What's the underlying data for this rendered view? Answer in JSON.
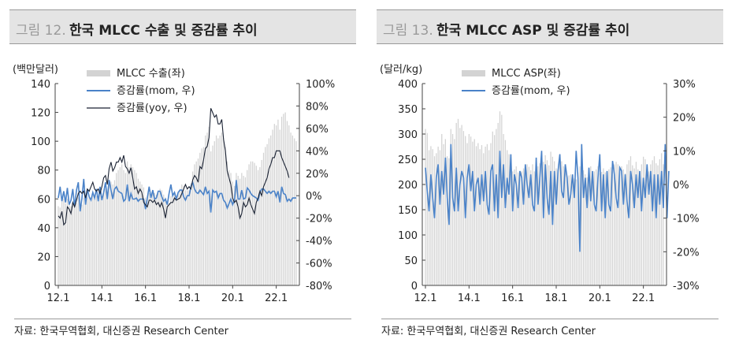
{
  "panels": {
    "left": {
      "title_num": "그림 12.",
      "title_text": "한국 MLCC 수출 및 증감률 추이",
      "source": "자료: 한국무역협회, 대신증권 Research Center"
    },
    "right": {
      "title_num": "그림 13.",
      "title_text": "한국 MLCC ASP 및 증감률 추이",
      "source": "자료: 한국무역협회, 대신증권 Research Center"
    }
  },
  "chart_data": [
    {
      "type": "bar",
      "title": "한국 MLCC 수출 및 증감률 추이",
      "ylabel": "(백만달러)",
      "ylim": [
        0,
        140
      ],
      "y_ticks": [
        "0",
        "20",
        "40",
        "60",
        "80",
        "100",
        "120",
        "140"
      ],
      "y2lim": [
        -80,
        100
      ],
      "y2_ticks": [
        "-80%",
        "-60%",
        "-40%",
        "-20%",
        "0%",
        "20%",
        "40%",
        "60%",
        "80%",
        "100%"
      ],
      "x_ticks": [
        "12.1",
        "14.1",
        "16.1",
        "18.1",
        "20.1",
        "22.1"
      ],
      "grid": false,
      "legend_position": "top-center",
      "colors": {
        "bar": "#d3d3d3",
        "mom": "#4a82c8",
        "yoy": "#1a2233"
      },
      "series": [
        {
          "name": "MLCC 수출(좌)",
          "axis": "left",
          "kind": "bar",
          "values": [
            55,
            54,
            58,
            60,
            57,
            60,
            56,
            55,
            57,
            59,
            57,
            61,
            57,
            56,
            61,
            58,
            61,
            62,
            60,
            62,
            61,
            62,
            60,
            63,
            62,
            64,
            67,
            65,
            71,
            72,
            70,
            73,
            78,
            80,
            82,
            84,
            80,
            78,
            86,
            82,
            84,
            82,
            80,
            78,
            74,
            72,
            70,
            68,
            61,
            60,
            64,
            63,
            66,
            64,
            63,
            65,
            67,
            66,
            63,
            61,
            56,
            57,
            62,
            62,
            64,
            62,
            64,
            67,
            70,
            69,
            66,
            66,
            66,
            71,
            79,
            84,
            86,
            88,
            92,
            95,
            96,
            104,
            106,
            110,
            93,
            97,
            100,
            104,
            102,
            104,
            106,
            102,
            96,
            86,
            80,
            78,
            72,
            69,
            78,
            76,
            74,
            78,
            76,
            75,
            80,
            84,
            86,
            86,
            85,
            83,
            80,
            82,
            87,
            92,
            96,
            98,
            102,
            104,
            108,
            112,
            111,
            115,
            108,
            117,
            119,
            120,
            114,
            111,
            106,
            104,
            102,
            100
          ]
        },
        {
          "name": "증감률(mom, 우)",
          "axis": "right",
          "kind": "line",
          "values": [
            -2,
            8,
            -5,
            4,
            -6,
            7,
            -8,
            -4,
            6,
            -10,
            5,
            12,
            -14,
            -2,
            15,
            -8,
            6,
            -1,
            -4,
            3,
            -2,
            6,
            -5,
            8,
            -4,
            3,
            12,
            -3,
            14,
            5,
            -3,
            6,
            8,
            4,
            3,
            2,
            -5,
            -3,
            10,
            -5,
            2,
            -3,
            -3,
            -2,
            -5,
            -3,
            -3,
            -3,
            -12,
            -2,
            8,
            -2,
            5,
            -3,
            -2,
            4,
            4,
            -1,
            -5,
            -3,
            -8,
            2,
            10,
            0,
            3,
            -3,
            3,
            5,
            5,
            -1,
            -4,
            0,
            0,
            8,
            12,
            6,
            3,
            2,
            5,
            3,
            1,
            8,
            2,
            4,
            -15,
            5,
            3,
            4,
            -2,
            2,
            2,
            -4,
            -6,
            -11,
            -7,
            -3,
            -8,
            -4,
            14,
            -3,
            -3,
            5,
            -3,
            -2,
            7,
            5,
            2,
            0,
            -1,
            -2,
            -4,
            3,
            6,
            6,
            4,
            2,
            4,
            2,
            4,
            4,
            -1,
            4,
            -6,
            8,
            2,
            1,
            -5,
            -3,
            -5,
            -2,
            -2,
            -2
          ]
        },
        {
          "name": "증감률(yoy, 우)",
          "axis": "right",
          "kind": "line",
          "values": [
            -18,
            -20,
            -14,
            -26,
            -24,
            -10,
            -12,
            -16,
            -6,
            -10,
            -4,
            2,
            4,
            2,
            4,
            -2,
            6,
            4,
            8,
            12,
            6,
            4,
            6,
            2,
            8,
            16,
            18,
            10,
            24,
            30,
            22,
            25,
            30,
            30,
            34,
            30,
            36,
            26,
            24,
            20,
            25,
            16,
            6,
            8,
            2,
            6,
            3,
            -6,
            -8,
            -10,
            -4,
            -4,
            -6,
            -4,
            -8,
            -6,
            -10,
            -6,
            -12,
            -20,
            -10,
            -8,
            -6,
            -6,
            -2,
            -4,
            -3,
            -2,
            2,
            6,
            10,
            6,
            8,
            6,
            14,
            18,
            16,
            12,
            26,
            24,
            32,
            42,
            44,
            52,
            78,
            74,
            70,
            72,
            64,
            64,
            68,
            50,
            40,
            22,
            16,
            10,
            -2,
            -6,
            -4,
            -10,
            -20,
            -16,
            -6,
            -10,
            -8,
            -2,
            -8,
            -12,
            -16,
            -6,
            -2,
            4,
            0,
            8,
            12,
            16,
            24,
            28,
            34,
            34,
            40,
            40,
            40,
            34,
            30,
            26,
            22,
            16
          ]
        }
      ]
    },
    {
      "type": "bar",
      "title": "한국 MLCC ASP 및 증감률 추이",
      "ylabel": "(달러/kg)",
      "ylim": [
        0,
        400
      ],
      "y_ticks": [
        "0",
        "50",
        "100",
        "150",
        "200",
        "250",
        "300",
        "350",
        "400"
      ],
      "y2lim": [
        -30,
        30
      ],
      "y2_ticks": [
        "-30%",
        "-20%",
        "-10%",
        "0%",
        "10%",
        "20%",
        "30%"
      ],
      "x_ticks": [
        "12.1",
        "14.1",
        "16.1",
        "18.1",
        "20.1",
        "22.1"
      ],
      "grid": false,
      "legend_position": "top-center",
      "colors": {
        "bar": "#d3d3d3",
        "mom": "#4a82c8"
      },
      "series": [
        {
          "name": "MLCC ASP(좌)",
          "axis": "left",
          "kind": "bar",
          "values": [
            310,
            302,
            268,
            276,
            270,
            256,
            262,
            275,
            268,
            300,
            280,
            290,
            256,
            252,
            310,
            300,
            290,
            322,
            330,
            312,
            318,
            306,
            296,
            282,
            300,
            295,
            285,
            290,
            276,
            282,
            270,
            278,
            262,
            275,
            280,
            268,
            282,
            305,
            298,
            310,
            322,
            345,
            338,
            300,
            288,
            268,
            260,
            245,
            226,
            230,
            236,
            224,
            218,
            226,
            232,
            230,
            240,
            235,
            228,
            240,
            226,
            230,
            236,
            242,
            250,
            245,
            258,
            248,
            238,
            265,
            255,
            246,
            232,
            230,
            242,
            246,
            236,
            226,
            216,
            218,
            220,
            205,
            212,
            210,
            224,
            236,
            232,
            228,
            220,
            214,
            224,
            236,
            218,
            226,
            230,
            236,
            222,
            225,
            232,
            224,
            218,
            230,
            234,
            226,
            240,
            245,
            240,
            232,
            236,
            230,
            222,
            240,
            248,
            256,
            238,
            232,
            245,
            230,
            226,
            240,
            255,
            250,
            232,
            226,
            240,
            248,
            256,
            242,
            238,
            250,
            262,
            240
          ]
        },
        {
          "name": "증감률(mom, 우)",
          "axis": "right",
          "kind": "line",
          "values": [
            5,
            -2,
            -8,
            3,
            -4,
            -10,
            2,
            6,
            -6,
            4,
            -3,
            8,
            -4,
            -12,
            12,
            -4,
            -8,
            5,
            -8,
            0,
            4,
            2,
            -10,
            2,
            6,
            -2,
            4,
            -8,
            0,
            2,
            -6,
            3,
            -5,
            4,
            -6,
            -9,
            4,
            6,
            -8,
            3,
            -10,
            10,
            -4,
            6,
            -7,
            2,
            -3,
            9,
            -8,
            3,
            0,
            -7,
            4,
            2,
            -6,
            6,
            0,
            -4,
            3,
            -6,
            -8,
            8,
            -6,
            2,
            10,
            -10,
            6,
            -4,
            -9,
            4,
            -12,
            4,
            -6,
            4,
            9,
            -2,
            -4,
            6,
            2,
            -6,
            -3,
            3,
            -4,
            10,
            2,
            -20,
            12,
            -4,
            2,
            -7,
            5,
            -5,
            4,
            -6,
            -8,
            2,
            9,
            -8,
            3,
            -10,
            4,
            -6,
            -8,
            7,
            3,
            -4,
            -7,
            5,
            4,
            -6,
            3,
            -5,
            -10,
            4,
            0,
            -7,
            3,
            -4,
            4,
            -8,
            2,
            -4,
            6,
            -3,
            4,
            -8,
            3,
            -10,
            3,
            -6,
            4,
            -7,
            12,
            -10,
            4
          ]
        }
      ]
    }
  ]
}
